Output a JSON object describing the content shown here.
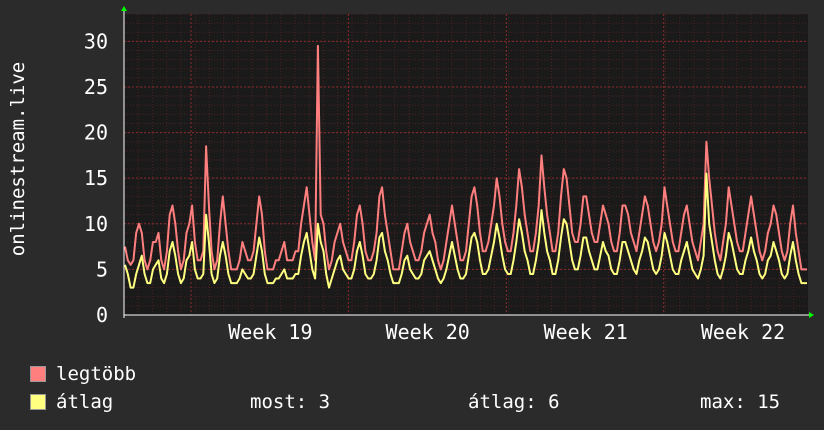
{
  "chart_data": {
    "type": "line",
    "ylabel": "onlinestream.live",
    "ylim": [
      0,
      33
    ],
    "yticks": [
      0,
      5,
      10,
      15,
      20,
      25,
      30
    ],
    "xticks": [
      "Week 19",
      "Week 20",
      "Week 21",
      "Week 22"
    ],
    "grid": true,
    "series": [
      {
        "name": "legtöbb",
        "color": "#ff7f7f",
        "values": [
          7.5,
          6,
          5.5,
          6,
          9,
          10,
          9,
          6,
          5,
          6,
          8,
          8,
          9,
          6,
          5,
          7,
          11,
          12,
          10,
          7,
          5,
          6,
          9,
          10,
          12,
          8,
          6,
          6,
          7,
          18.5,
          12,
          7,
          5,
          6,
          10,
          13,
          10,
          7,
          5,
          5,
          5,
          6,
          8,
          7,
          6,
          6,
          7,
          10,
          13,
          11,
          7,
          5,
          5,
          5,
          6,
          6,
          7,
          8,
          6,
          6,
          6,
          7,
          7,
          10,
          12,
          14,
          11,
          8,
          6,
          29.5,
          11,
          10,
          7,
          5,
          6,
          8,
          9,
          10,
          8,
          7,
          6,
          6,
          8,
          11,
          12,
          10,
          7,
          6,
          6,
          7,
          9,
          13,
          14,
          11,
          9,
          7,
          5,
          5,
          5,
          7,
          9,
          10,
          8,
          7,
          6,
          6,
          7,
          9,
          10,
          11,
          9,
          8,
          6,
          5,
          6,
          8,
          10,
          12,
          10,
          8,
          6,
          6,
          7,
          10,
          13,
          14,
          12,
          9,
          7,
          7,
          8,
          10,
          12,
          15,
          13,
          10,
          8,
          7,
          7,
          9,
          12,
          16,
          14,
          11,
          9,
          7,
          7,
          9,
          12,
          17.5,
          14,
          11,
          9,
          7,
          7,
          9,
          13,
          16,
          15,
          12,
          9,
          8,
          8,
          10,
          13,
          13,
          11,
          9,
          8,
          8,
          10,
          12,
          11,
          10,
          8,
          7,
          7,
          9,
          12,
          12,
          11,
          9,
          8,
          7,
          9,
          11,
          13,
          12,
          10,
          8,
          7,
          8,
          10,
          14,
          12,
          10,
          8,
          7,
          7,
          9,
          11,
          12,
          10,
          8,
          7,
          6,
          8,
          10,
          19,
          15,
          12,
          9,
          7,
          6,
          8,
          10,
          14,
          12,
          10,
          8,
          7,
          7,
          9,
          11,
          13,
          11,
          9,
          7,
          6,
          7,
          9,
          10,
          12,
          11,
          9,
          7,
          6,
          7,
          10,
          12,
          9,
          7,
          5,
          5,
          5
        ]
      },
      {
        "name": "átlag",
        "color": "#ffff80",
        "values": [
          5.5,
          4.5,
          3,
          3,
          4.5,
          5.5,
          6.5,
          4.5,
          3.5,
          3.5,
          5,
          5.5,
          6,
          4,
          3.5,
          4.5,
          7,
          8,
          6.5,
          4.5,
          3.5,
          4,
          6,
          6.5,
          8,
          5,
          4,
          4,
          4.5,
          11,
          8,
          4.5,
          3.5,
          4,
          6.5,
          8,
          6.5,
          4.5,
          3.5,
          3.5,
          3.5,
          4,
          5,
          4.5,
          4,
          4,
          4.5,
          6.5,
          8.5,
          7,
          4.5,
          3.5,
          3.5,
          3.5,
          4,
          4,
          4.5,
          5,
          4,
          4,
          4,
          4.5,
          4.5,
          6.5,
          8,
          9,
          7,
          5,
          4,
          10,
          8,
          7,
          4.5,
          3,
          4,
          5,
          6,
          6.5,
          5,
          4.5,
          4,
          4,
          5,
          7,
          8,
          6.5,
          4.5,
          4,
          4,
          4.5,
          6,
          8.5,
          9,
          7,
          6,
          4.5,
          3.5,
          3.5,
          3.5,
          4.5,
          6,
          6.5,
          5,
          4.5,
          4,
          4,
          4.5,
          6,
          6.5,
          7,
          6,
          5,
          4,
          3.5,
          4,
          5,
          6.5,
          8,
          6.5,
          5,
          4,
          4,
          4.5,
          6.5,
          8.5,
          9,
          8,
          6,
          4.5,
          4.5,
          5,
          6.5,
          8,
          10,
          8.5,
          6.5,
          5,
          4.5,
          4.5,
          6,
          8,
          10.5,
          9,
          7,
          6,
          4.5,
          4.5,
          6,
          8,
          11.5,
          9,
          7,
          6,
          4.5,
          4.5,
          6,
          8.5,
          10.5,
          10,
          8,
          6,
          5,
          5,
          6.5,
          8.5,
          8.5,
          7,
          6,
          5,
          5,
          6.5,
          8,
          7,
          6.5,
          5,
          4.5,
          4.5,
          6,
          8,
          8,
          7,
          6,
          5,
          4.5,
          6,
          7,
          8.5,
          8,
          6.5,
          5,
          4.5,
          5,
          6.5,
          9,
          8,
          6.5,
          5,
          4.5,
          4.5,
          6,
          7,
          8,
          6.5,
          5,
          4.5,
          4,
          5,
          6.5,
          15.5,
          10,
          8,
          6,
          4.5,
          4,
          5,
          6.5,
          9,
          8,
          6.5,
          5,
          4.5,
          4.5,
          6,
          7,
          8.5,
          7,
          6,
          4.5,
          4,
          4.5,
          6,
          6.5,
          8,
          7,
          6,
          4.5,
          4,
          4.5,
          6.5,
          8,
          6,
          4.5,
          3.5,
          3.5,
          3.5
        ]
      }
    ]
  },
  "legend": {
    "max_label": "legtöbb",
    "avg_label": "átlag",
    "current": "most: 3",
    "average": "átlag: 6",
    "maximum": "max: 15"
  },
  "colors": {
    "background": "#2b2b2b",
    "plot_bg": "#1a1a1a",
    "grid": "#8b2b2b",
    "axis": "#00ff00"
  }
}
